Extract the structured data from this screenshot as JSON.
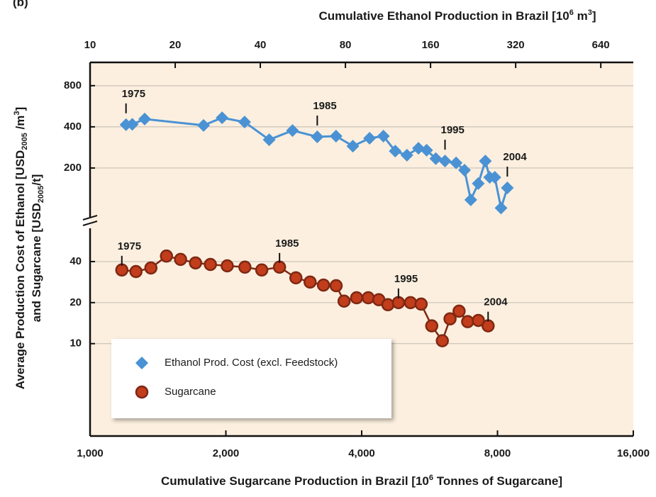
{
  "chart_data": {
    "type": "scatter-line",
    "panel_label": "(b)",
    "x_label": [
      "Cumulative Sugarcane Production in Brazil [10",
      "6",
      "  Tonnes of Sugarcane]"
    ],
    "x2_label": [
      "Cumulative Ethanol Production in Brazil [10",
      "6",
      " m",
      "3",
      "]"
    ],
    "y_label": [
      [
        "Average Production Cost of Ethanol [USD",
        "2005",
        " /m",
        "3",
        "]"
      ],
      [
        "and Sugarcane [USD",
        "2005",
        "/t]"
      ]
    ],
    "log_x": true,
    "log_y": true,
    "grid": true,
    "legend": "lower left",
    "xlim": [
      1000,
      16000
    ],
    "xticks": [
      {
        "value": 1000,
        "label": "1,000"
      },
      {
        "value": 2000,
        "label": "2,000"
      },
      {
        "value": 4000,
        "label": "4,000"
      },
      {
        "value": 8000,
        "label": "8,000"
      },
      {
        "value": 16000,
        "label": "16,000"
      }
    ],
    "x2lim": [
      10,
      834
    ],
    "x2ticks": [
      10,
      20,
      40,
      80,
      160,
      320,
      640
    ],
    "ylim": [
      76,
      1184
    ],
    "yticks": [
      200,
      400,
      800
    ],
    "y2lim": [
      2.1,
      67.7
    ],
    "y2ticks": [
      10,
      20,
      40
    ],
    "series": [
      {
        "name": "Ethanol Prod. Cost (excl. Feedstock)",
        "color": "#4a92d4",
        "marker": "diamond",
        "xaxis": "x2",
        "x": [
          13.4,
          14.1,
          15.6,
          25.2,
          29.3,
          35.2,
          43.0,
          52.0,
          63.6,
          74.1,
          85.0,
          97.4,
          109,
          120,
          132,
          145,
          155,
          167,
          180,
          197,
          211,
          222,
          236,
          250,
          259,
          270,
          284,
          299
        ],
        "values": [
          415,
          417,
          456,
          410,
          466,
          434,
          322,
          376,
          338,
          342,
          289,
          330,
          342,
          266,
          248,
          279,
          270,
          234,
          225,
          218,
          193,
          117,
          154,
          225,
          171,
          171,
          102,
          143
        ],
        "annotations": [
          "1975",
          "1985",
          "1995",
          "2004"
        ]
      },
      {
        "name": "Sugarcane",
        "color": "#c23d1c",
        "marker": "circle",
        "axis": "y2",
        "x": [
          1176,
          1264,
          1364,
          1477,
          1587,
          1713,
          1848,
          2014,
          2204,
          2402,
          2630,
          2859,
          3074,
          3291,
          3511,
          3656,
          3898,
          4136,
          4366,
          4573,
          4826,
          5132,
          5418,
          5719,
          6037,
          6279,
          6576,
          6870,
          7255,
          7626
        ],
        "values": [
          34.7,
          33.8,
          35.9,
          43.9,
          41.5,
          39.1,
          38.1,
          37.2,
          36.4,
          34.7,
          36.4,
          30.4,
          28.3,
          26.9,
          26.6,
          20.5,
          21.7,
          21.7,
          21.0,
          19.3,
          20.0,
          20.0,
          19.5,
          13.5,
          10.5,
          15.2,
          17.3,
          14.5,
          14.8,
          13.5
        ],
        "annotations": [
          "1975",
          "1985",
          "1995",
          "2004"
        ]
      }
    ]
  }
}
